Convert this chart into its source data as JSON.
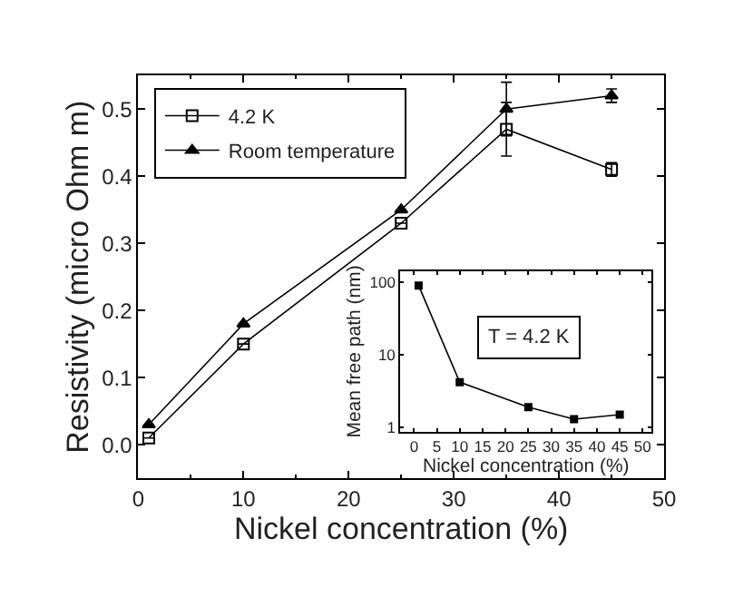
{
  "chart_data": [
    {
      "type": "line",
      "xlabel": "Nickel concentration (%)",
      "ylabel": "Resistivity (micro Ohm m)",
      "x": [
        1,
        10,
        25,
        35,
        45
      ],
      "series": [
        {
          "name": "4.2 K",
          "color": "#000000",
          "marker": "square",
          "values": [
            0.01,
            0.15,
            0.33,
            0.47,
            0.41
          ],
          "errors": [
            null,
            null,
            null,
            0.04,
            0.01
          ]
        },
        {
          "name": "Room temperature",
          "color": "#000000",
          "marker": "triangle",
          "values": [
            0.03,
            0.18,
            0.35,
            0.5,
            0.52
          ],
          "errors": [
            null,
            null,
            null,
            0.04,
            0.01
          ]
        }
      ],
      "xlim": [
        0,
        50
      ],
      "xticks": [
        0,
        10,
        20,
        30,
        40,
        50
      ],
      "ylim": [
        -0.05,
        0.55
      ],
      "yticks": [
        {
          "value": 0,
          "label": "0.0"
        },
        0.1,
        0.2,
        0.3,
        0.4,
        0.5
      ],
      "legend": "top left"
    },
    {
      "type": "line",
      "xlabel": "Nickel concentration (%)",
      "ylabel": "Mean free path (nm)",
      "x": [
        1,
        10,
        25,
        35,
        45
      ],
      "series": [
        {
          "color": "#000000",
          "marker": "square",
          "values": [
            90,
            4.2,
            1.9,
            1.3,
            1.5
          ]
        }
      ],
      "xlim": [
        -3,
        52
      ],
      "xticks": [
        0,
        5,
        10,
        15,
        20,
        25,
        30,
        35,
        40,
        45,
        50
      ],
      "ylim": [
        0.88,
        140
      ],
      "yticks": [
        1,
        10,
        100
      ],
      "log": true,
      "annotations": [
        "T = 4.2 K"
      ],
      "legend": false
    }
  ]
}
